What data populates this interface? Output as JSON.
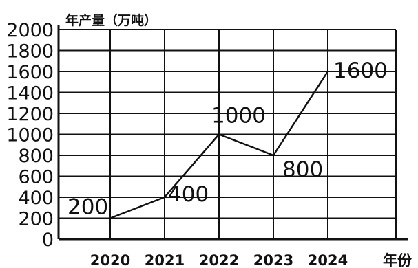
{
  "chart_data": {
    "type": "line",
    "title": "",
    "ylabel": "年产量（万吨）",
    "xlabel": "年份",
    "x": [
      "2020",
      "2021",
      "2022",
      "2023",
      "2024"
    ],
    "values": [
      200,
      400,
      1000,
      800,
      1600
    ],
    "data_labels": [
      "200",
      "400",
      "1000",
      "800",
      "1600"
    ],
    "yticks": [
      "0",
      "200",
      "400",
      "600",
      "800",
      "1000",
      "1200",
      "1400",
      "1600",
      "1800",
      "2000"
    ],
    "ylim": [
      0,
      2000
    ],
    "grid": true,
    "legend": "none",
    "colors": {
      "line": "#111111",
      "grid": "#111111",
      "background": "#ffffff"
    }
  }
}
